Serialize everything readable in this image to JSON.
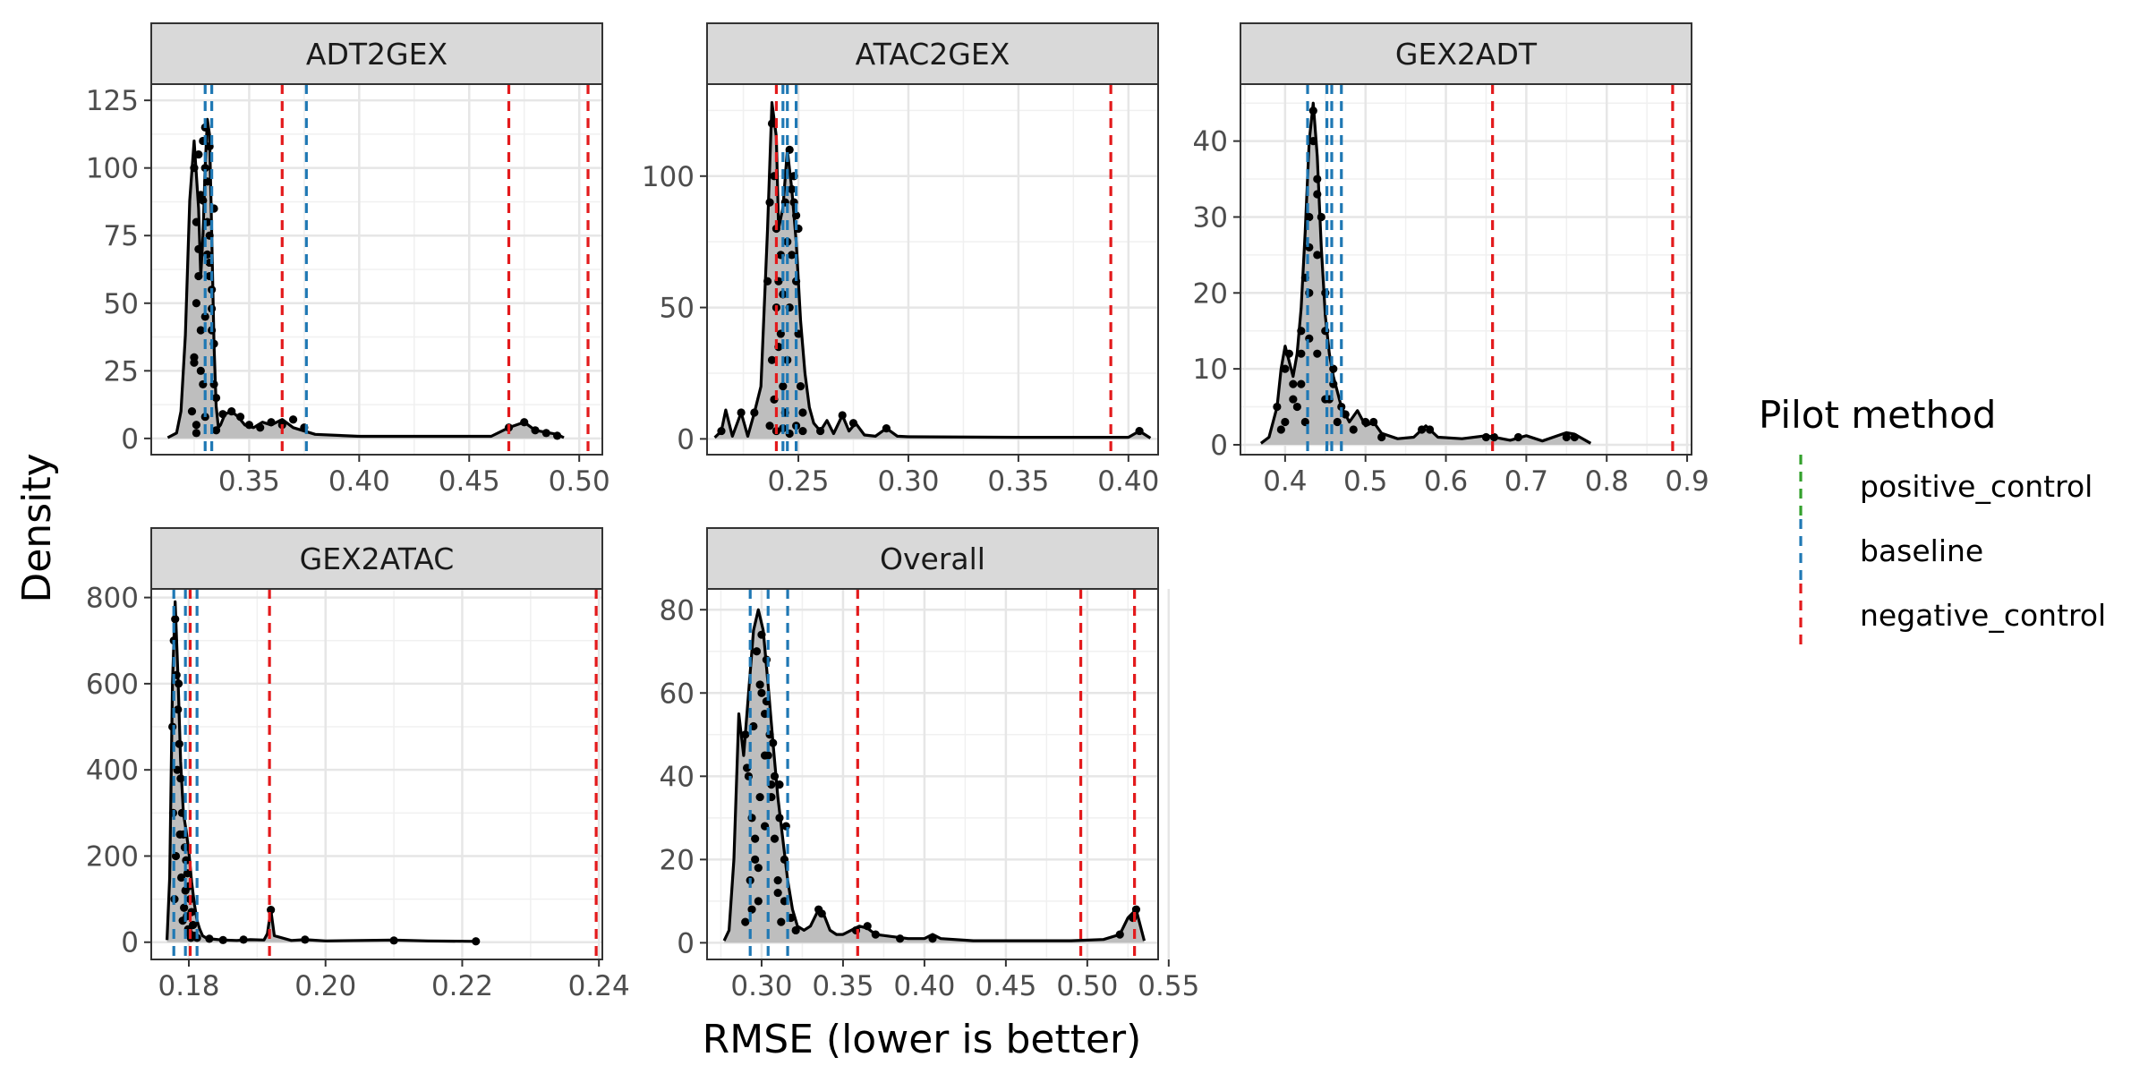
{
  "chart_data": {
    "type": "area",
    "xlabel": "RMSE (lower is better)",
    "ylabel": "Density",
    "legend": {
      "title": "Pilot method",
      "position": "right",
      "entries": [
        {
          "name": "positive_control",
          "color": "#33a02c"
        },
        {
          "name": "baseline",
          "color": "#1f78b4"
        },
        {
          "name": "negative_control",
          "color": "#e31a1c"
        }
      ]
    },
    "grid": true,
    "panels": [
      {
        "title": "ADT2GEX",
        "xlim": [
          0.3055,
          0.5105
        ],
        "ylim": [
          -6,
          131
        ],
        "xticks": [
          0.35,
          0.4,
          0.45,
          0.5
        ],
        "xticklabels": [
          "0.35",
          "0.40",
          "0.45",
          "0.50"
        ],
        "yticks": [
          0,
          25,
          50,
          75,
          100,
          125
        ],
        "yticklabels": [
          "0",
          "25",
          "50",
          "75",
          "100",
          "125"
        ],
        "density": {
          "x": [
            0.313,
            0.317,
            0.319,
            0.321,
            0.323,
            0.325,
            0.327,
            0.328,
            0.329,
            0.33,
            0.331,
            0.332,
            0.333,
            0.334,
            0.335,
            0.336,
            0.337,
            0.339,
            0.342,
            0.345,
            0.348,
            0.352,
            0.356,
            0.36,
            0.365,
            0.37,
            0.38,
            0.4,
            0.43,
            0.46,
            0.468,
            0.475,
            0.48,
            0.49,
            0.493
          ],
          "y": [
            0.3,
            2,
            10,
            38,
            88,
            110,
            85,
            60,
            75,
            100,
            118,
            112,
            75,
            35,
            12,
            4,
            5,
            9,
            10,
            8,
            5,
            4,
            6,
            5,
            7,
            4,
            1.5,
            0.8,
            0.8,
            0.8,
            4,
            6,
            3,
            1.5,
            0.3
          ]
        },
        "points": {
          "x": [
            0.325,
            0.326,
            0.327,
            0.328,
            0.329,
            0.33,
            0.331,
            0.332,
            0.333,
            0.334,
            0.324,
            0.325,
            0.326,
            0.327,
            0.328,
            0.329,
            0.33,
            0.331,
            0.332,
            0.333,
            0.334,
            0.335,
            0.326,
            0.328,
            0.33,
            0.332,
            0.334,
            0.327,
            0.329,
            0.331,
            0.333,
            0.325,
            0.33,
            0.335,
            0.326,
            0.332,
            0.338,
            0.342,
            0.346,
            0.35,
            0.355,
            0.36,
            0.365,
            0.37,
            0.375,
            0.468,
            0.475,
            0.48,
            0.485,
            0.49
          ],
          "y": [
            100,
            80,
            60,
            40,
            20,
            100,
            80,
            60,
            40,
            20,
            10,
            30,
            50,
            70,
            90,
            110,
            115,
            95,
            75,
            55,
            35,
            15,
            5,
            25,
            45,
            65,
            85,
            105,
            88,
            68,
            48,
            28,
            8,
            3,
            2,
            108,
            9,
            10,
            8,
            5,
            4,
            6,
            5,
            7,
            4,
            4,
            6,
            3,
            2,
            1
          ]
        },
        "baseline": [
          0.33,
          0.333,
          0.376
        ],
        "negative_control": [
          0.365,
          0.468,
          0.504
        ]
      },
      {
        "title": "ATAC2GEX",
        "xlim": [
          0.2085,
          0.4135
        ],
        "ylim": [
          -6,
          135
        ],
        "xticks": [
          0.25,
          0.3,
          0.35,
          0.4
        ],
        "xticklabels": [
          "0.25",
          "0.30",
          "0.35",
          "0.40"
        ],
        "yticks": [
          0,
          50,
          100
        ],
        "yticklabels": [
          "0",
          "50",
          "100"
        ],
        "density": {
          "x": [
            0.212,
            0.215,
            0.217,
            0.22,
            0.224,
            0.227,
            0.23,
            0.233,
            0.236,
            0.238,
            0.24,
            0.241,
            0.243,
            0.245,
            0.247,
            0.249,
            0.251,
            0.253,
            0.255,
            0.257,
            0.26,
            0.263,
            0.266,
            0.27,
            0.273,
            0.276,
            0.28,
            0.285,
            0.29,
            0.295,
            0.3,
            0.35,
            0.4,
            0.405,
            0.41
          ],
          "y": [
            0.5,
            3,
            11,
            1,
            10,
            1,
            10,
            20,
            80,
            128,
            115,
            80,
            88,
            110,
            95,
            75,
            45,
            25,
            12,
            6,
            3,
            7,
            2,
            9,
            3,
            6,
            1.5,
            1,
            4,
            1,
            0.8,
            0.6,
            0.6,
            3,
            0.3
          ]
        },
        "points": {
          "x": [
            0.236,
            0.237,
            0.238,
            0.239,
            0.24,
            0.241,
            0.242,
            0.243,
            0.244,
            0.245,
            0.246,
            0.247,
            0.248,
            0.249,
            0.25,
            0.251,
            0.252,
            0.238,
            0.24,
            0.242,
            0.244,
            0.246,
            0.248,
            0.25,
            0.239,
            0.241,
            0.243,
            0.245,
            0.247,
            0.249,
            0.237,
            0.24,
            0.243,
            0.246,
            0.249,
            0.252,
            0.215,
            0.224,
            0.23,
            0.26,
            0.27,
            0.275,
            0.29,
            0.405
          ],
          "y": [
            60,
            90,
            120,
            100,
            80,
            60,
            40,
            20,
            10,
            30,
            50,
            70,
            90,
            60,
            40,
            20,
            10,
            30,
            50,
            70,
            90,
            110,
            100,
            80,
            15,
            35,
            55,
            75,
            95,
            85,
            5,
            3,
            4,
            2,
            5,
            3,
            3,
            10,
            10,
            3,
            9,
            6,
            4,
            3
          ]
        },
        "baseline": [
          0.243,
          0.245,
          0.249
        ],
        "negative_control": [
          0.24,
          0.392
        ]
      },
      {
        "title": "GEX2ADT",
        "xlim": [
          0.3445,
          0.9055
        ],
        "ylim": [
          -1.3,
          47.5
        ],
        "xticks": [
          0.4,
          0.5,
          0.6,
          0.7,
          0.8,
          0.9
        ],
        "xticklabels": [
          "0.4",
          "0.5",
          "0.6",
          "0.7",
          "0.8",
          "0.9"
        ],
        "yticks": [
          0,
          10,
          20,
          30,
          40
        ],
        "yticklabels": [
          "0",
          "10",
          "20",
          "30",
          "40"
        ],
        "density": {
          "x": [
            0.37,
            0.38,
            0.39,
            0.395,
            0.4,
            0.405,
            0.41,
            0.415,
            0.42,
            0.425,
            0.43,
            0.435,
            0.44,
            0.445,
            0.45,
            0.455,
            0.46,
            0.465,
            0.47,
            0.48,
            0.49,
            0.5,
            0.51,
            0.52,
            0.54,
            0.56,
            0.575,
            0.59,
            0.62,
            0.65,
            0.66,
            0.68,
            0.7,
            0.72,
            0.75,
            0.76,
            0.78
          ],
          "y": [
            0.2,
            1,
            5,
            10,
            13,
            11,
            9,
            12,
            18,
            28,
            40,
            45,
            38,
            26,
            17,
            12,
            9,
            7,
            5,
            3,
            4.5,
            2.5,
            3,
            1.5,
            0.8,
            1,
            2.5,
            1,
            0.8,
            1.2,
            1,
            0.6,
            1.2,
            0.5,
            1.6,
            1.4,
            0.2
          ]
        },
        "points": {
          "x": [
            0.39,
            0.4,
            0.41,
            0.42,
            0.43,
            0.44,
            0.45,
            0.46,
            0.47,
            0.4,
            0.41,
            0.42,
            0.43,
            0.44,
            0.45,
            0.46,
            0.395,
            0.405,
            0.415,
            0.425,
            0.435,
            0.445,
            0.455,
            0.465,
            0.42,
            0.43,
            0.44,
            0.45,
            0.43,
            0.435,
            0.44,
            0.425,
            0.475,
            0.485,
            0.5,
            0.51,
            0.52,
            0.57,
            0.58,
            0.65,
            0.66,
            0.69,
            0.75,
            0.76
          ],
          "y": [
            5,
            10,
            8,
            12,
            20,
            25,
            15,
            8,
            5,
            3,
            6,
            15,
            30,
            35,
            20,
            10,
            2,
            12,
            5,
            22,
            40,
            30,
            6,
            3,
            8,
            14,
            12,
            6,
            26,
            44,
            33,
            3,
            4,
            2,
            3,
            3,
            1,
            2,
            2,
            1,
            1,
            1,
            1,
            1
          ]
        },
        "baseline": [
          0.428,
          0.452,
          0.458,
          0.47
        ],
        "negative_control": [
          0.658,
          0.882
        ]
      },
      {
        "title": "GEX2ATAC",
        "xlim": [
          0.1745,
          0.2405
        ],
        "ylim": [
          -40,
          820
        ],
        "xticks": [
          0.18,
          0.2,
          0.22,
          0.24
        ],
        "xticklabels": [
          "0.18",
          "0.20",
          "0.22",
          "0.24"
        ],
        "yticks": [
          0,
          200,
          400,
          600,
          800
        ],
        "yticklabels": [
          "0",
          "200",
          "400",
          "600",
          "800"
        ],
        "density": {
          "x": [
            0.1768,
            0.1772,
            0.1776,
            0.178,
            0.1784,
            0.1788,
            0.1792,
            0.1796,
            0.18,
            0.1804,
            0.1808,
            0.1812,
            0.1816,
            0.182,
            0.1825,
            0.183,
            0.185,
            0.187,
            0.189,
            0.191,
            0.1915,
            0.192,
            0.1925,
            0.195,
            0.197,
            0.2,
            0.21,
            0.215,
            0.222
          ],
          "y": [
            5,
            150,
            600,
            790,
            620,
            420,
            300,
            260,
            210,
            140,
            90,
            50,
            30,
            15,
            10,
            8,
            5,
            4,
            6,
            5,
            20,
            75,
            15,
            4,
            6,
            3,
            5,
            3,
            2
          ]
        },
        "points": {
          "x": [
            0.1776,
            0.1778,
            0.178,
            0.1782,
            0.1784,
            0.1786,
            0.1788,
            0.179,
            0.1792,
            0.1794,
            0.1796,
            0.1798,
            0.18,
            0.1802,
            0.1804,
            0.1806,
            0.1777,
            0.1779,
            0.1781,
            0.1783,
            0.1785,
            0.1787,
            0.1789,
            0.1791,
            0.1793,
            0.1795,
            0.1797,
            0.1799,
            0.1801,
            0.1803,
            0.1808,
            0.1812,
            0.183,
            0.185,
            0.188,
            0.192,
            0.197,
            0.21,
            0.222
          ],
          "y": [
            500,
            700,
            750,
            620,
            540,
            460,
            380,
            300,
            250,
            220,
            190,
            160,
            130,
            100,
            70,
            40,
            300,
            100,
            200,
            400,
            600,
            250,
            150,
            50,
            80,
            120,
            60,
            30,
            20,
            10,
            15,
            10,
            8,
            5,
            6,
            75,
            6,
            4,
            2
          ]
        },
        "baseline": [
          0.1778,
          0.1795,
          0.1812
        ],
        "negative_control": [
          0.1802,
          0.1918,
          0.2396
        ]
      },
      {
        "title": "Overall",
        "xlim": [
          0.2665,
          0.5435
        ],
        "ylim": [
          -4,
          85
        ],
        "xticks": [
          0.3,
          0.35,
          0.4,
          0.45,
          0.5,
          0.55
        ],
        "xticklabels": [
          "0.30",
          "0.35",
          "0.40",
          "0.45",
          "0.50",
          "0.55"
        ],
        "yticks": [
          0,
          20,
          40,
          60,
          80
        ],
        "yticklabels": [
          "0",
          "20",
          "40",
          "60",
          "80"
        ],
        "density": {
          "x": [
            0.277,
            0.28,
            0.283,
            0.286,
            0.289,
            0.292,
            0.295,
            0.298,
            0.301,
            0.304,
            0.307,
            0.31,
            0.313,
            0.316,
            0.319,
            0.322,
            0.326,
            0.33,
            0.335,
            0.338,
            0.342,
            0.346,
            0.35,
            0.355,
            0.36,
            0.365,
            0.37,
            0.38,
            0.39,
            0.4,
            0.405,
            0.41,
            0.43,
            0.46,
            0.49,
            0.51,
            0.52,
            0.525,
            0.53,
            0.535
          ],
          "y": [
            0.5,
            3,
            20,
            55,
            45,
            60,
            75,
            80,
            75,
            62,
            48,
            35,
            25,
            15,
            8,
            4,
            3,
            4,
            8,
            7,
            3,
            2,
            2,
            3,
            4,
            3.5,
            2,
            1.5,
            1,
            1,
            2,
            1,
            0.5,
            0.5,
            0.5,
            0.8,
            2,
            6,
            8,
            0.5
          ]
        },
        "points": {
          "x": [
            0.29,
            0.292,
            0.294,
            0.296,
            0.298,
            0.3,
            0.302,
            0.304,
            0.306,
            0.308,
            0.31,
            0.312,
            0.29,
            0.293,
            0.296,
            0.299,
            0.302,
            0.305,
            0.308,
            0.311,
            0.314,
            0.291,
            0.295,
            0.299,
            0.303,
            0.307,
            0.311,
            0.315,
            0.294,
            0.298,
            0.302,
            0.306,
            0.31,
            0.314,
            0.297,
            0.3,
            0.303,
            0.318,
            0.321,
            0.335,
            0.337,
            0.358,
            0.365,
            0.37,
            0.385,
            0.405,
            0.52,
            0.528,
            0.53
          ],
          "y": [
            50,
            40,
            30,
            20,
            10,
            60,
            55,
            45,
            35,
            25,
            15,
            5,
            5,
            15,
            25,
            35,
            45,
            50,
            40,
            30,
            20,
            42,
            52,
            62,
            58,
            48,
            38,
            28,
            8,
            18,
            28,
            38,
            12,
            10,
            70,
            74,
            68,
            6,
            3,
            8,
            7,
            3,
            4,
            2,
            1,
            1,
            2,
            6,
            8
          ]
        },
        "baseline": [
          0.293,
          0.304,
          0.316
        ],
        "negative_control": [
          0.359,
          0.496,
          0.529
        ]
      }
    ]
  }
}
